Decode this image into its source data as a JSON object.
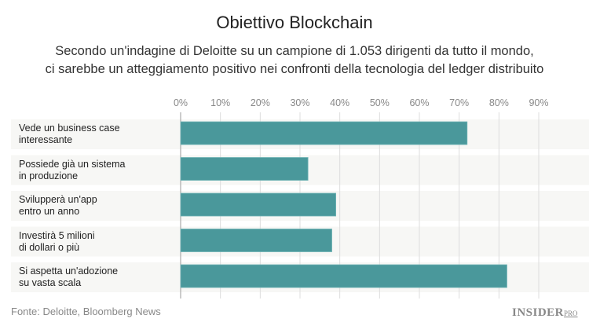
{
  "chart_data": {
    "type": "bar",
    "orientation": "horizontal",
    "title": "Obiettivo Blockchain",
    "subtitle": [
      "Secondo un'indagine di Deloitte su un campione di 1.053 dirigenti da tutto il mondo,",
      "ci sarebbe un atteggiamento positivo nei confronti della tecnologia del ledger distribuito"
    ],
    "categories": [
      [
        "Vede un business case",
        "interessante"
      ],
      [
        "Possiede già un sistema",
        "in produzione"
      ],
      [
        "Svilupperà un'app",
        "entro un anno"
      ],
      [
        "Investirà 5 milioni",
        "di dollari o più"
      ],
      [
        "Si aspetta un'adozione",
        "su vasta scala"
      ]
    ],
    "values": [
      72,
      32,
      39,
      38,
      82
    ],
    "xlim": [
      0,
      90
    ],
    "xticks": [
      "0%",
      "10%",
      "20%",
      "30%",
      "40%",
      "50%",
      "60%",
      "70%",
      "80%",
      "90%"
    ],
    "grid": true,
    "bar_color": "#4a989b",
    "row_bg": "#f7f7f5"
  },
  "source": "Fonte: Deloitte, Bloomberg News",
  "logo": {
    "main": "INSIDER",
    "sup": "PRO"
  }
}
